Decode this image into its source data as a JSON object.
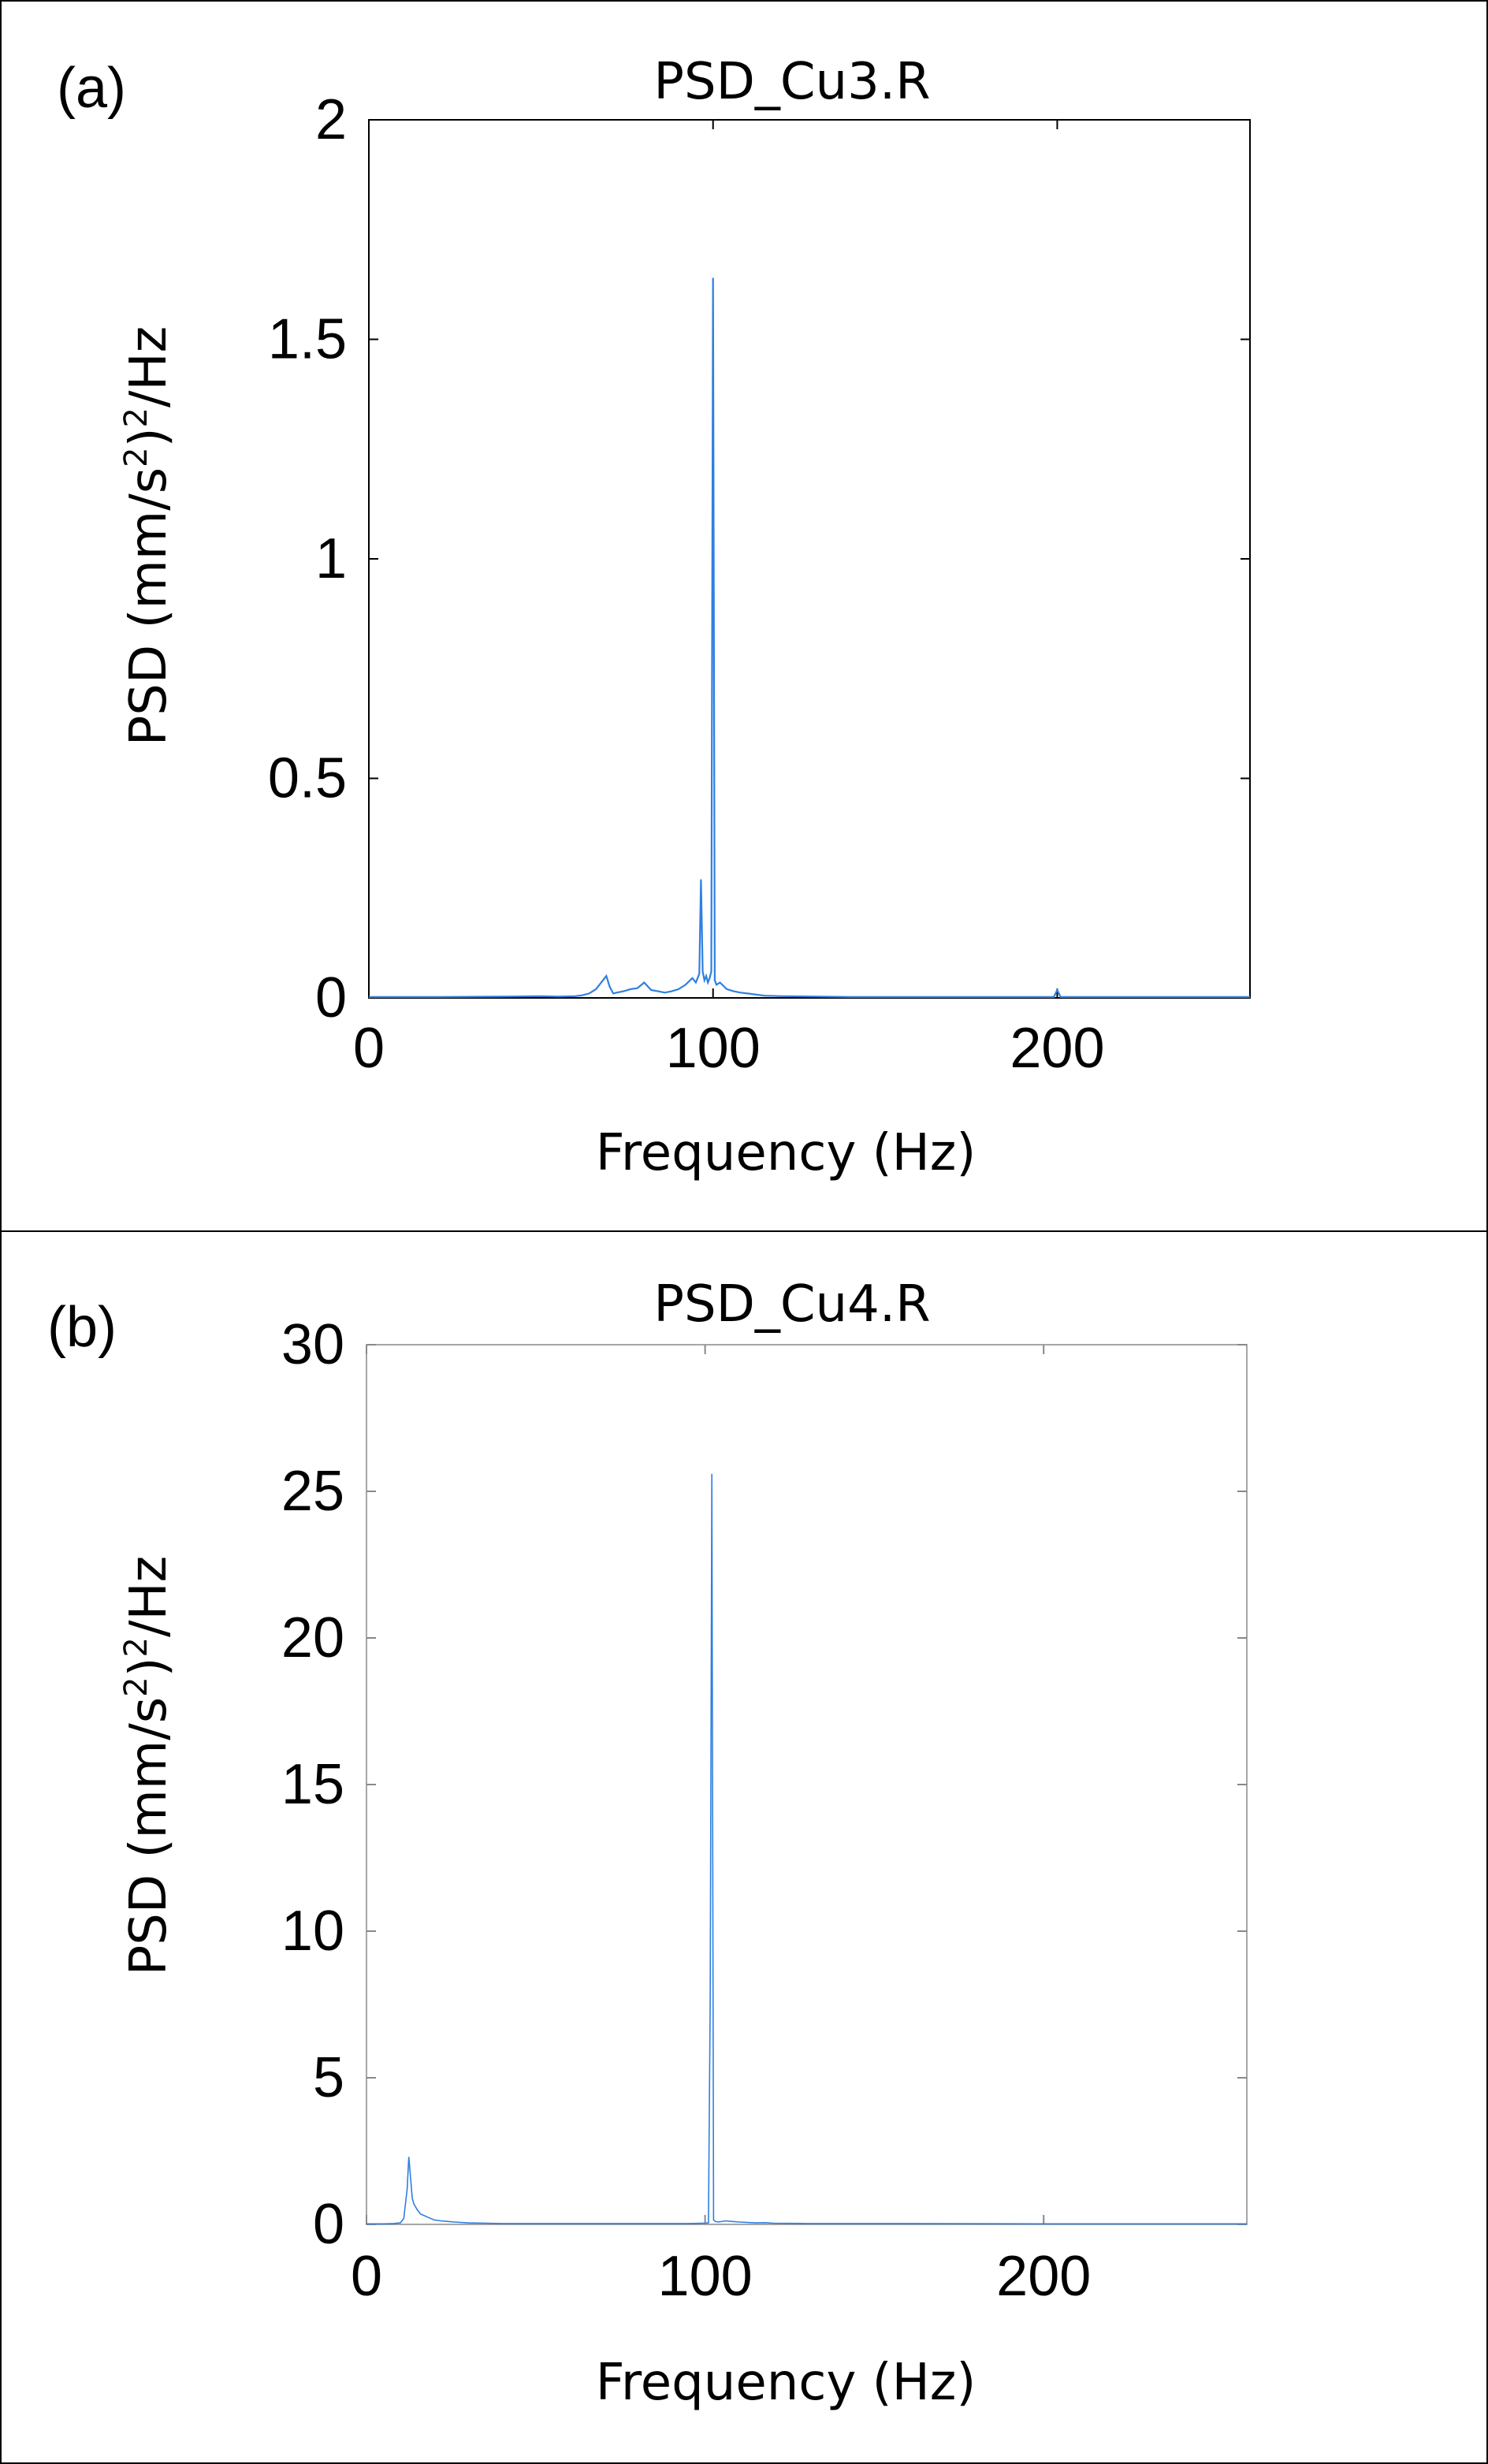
{
  "chart_data": [
    {
      "type": "line",
      "panel_label": "(a)",
      "title": "PSD_Cu3.R",
      "xlabel": "Frequency (Hz)",
      "ylabel_prefix": "PSD (mm/s",
      "ylabel_sup": "2",
      "ylabel_mid": ")",
      "ylabel_sup2": "2",
      "ylabel_suffix": "/Hz",
      "xlim": [
        0,
        256
      ],
      "ylim": [
        0,
        2
      ],
      "xticks": [
        0,
        100,
        200
      ],
      "yticks": [
        0,
        0.5,
        1,
        1.5,
        2
      ],
      "grid": false,
      "line_color": "#2f7fe0",
      "series": [
        {
          "x": [
            0,
            20,
            40,
            50,
            55,
            60,
            62,
            64,
            66,
            68,
            69,
            70,
            71,
            72,
            74,
            76,
            78,
            80,
            82,
            84,
            86,
            88,
            90,
            92,
            94,
            95,
            96,
            96.5,
            97,
            97.5,
            98,
            98.5,
            99,
            99.5,
            100,
            100.5,
            101,
            102,
            104,
            106,
            108,
            110,
            115,
            120,
            130,
            140,
            160,
            180,
            199,
            200,
            201,
            220,
            240,
            256
          ],
          "y": [
            0.002,
            0.002,
            0.003,
            0.004,
            0.003,
            0.004,
            0.006,
            0.01,
            0.02,
            0.04,
            0.05,
            0.025,
            0.01,
            0.012,
            0.015,
            0.02,
            0.022,
            0.035,
            0.018,
            0.015,
            0.012,
            0.015,
            0.02,
            0.03,
            0.045,
            0.035,
            0.055,
            0.27,
            0.06,
            0.04,
            0.05,
            0.035,
            0.045,
            0.06,
            1.64,
            0.04,
            0.03,
            0.035,
            0.02,
            0.015,
            0.012,
            0.01,
            0.005,
            0.004,
            0.003,
            0.002,
            0.002,
            0.002,
            0.002,
            0.018,
            0.002,
            0.002,
            0.002,
            0.002
          ]
        }
      ]
    },
    {
      "type": "line",
      "panel_label": "(b)",
      "title": "PSD_Cu4.R",
      "xlabel": "Frequency (Hz)",
      "ylabel_prefix": "PSD (mm/s",
      "ylabel_sup": "2",
      "ylabel_mid": ")",
      "ylabel_sup2": "2",
      "ylabel_suffix": "/Hz",
      "xlim": [
        0,
        260
      ],
      "ylim": [
        0,
        30
      ],
      "xticks": [
        0,
        100,
        200
      ],
      "yticks": [
        0,
        5,
        10,
        15,
        20,
        25,
        30
      ],
      "grid": false,
      "line_color": "#2f7fe0",
      "series": [
        {
          "x": [
            0,
            5,
            8,
            10,
            11,
            12,
            12.5,
            13,
            13.5,
            14,
            15,
            16,
            17,
            18,
            20,
            22,
            24,
            26,
            30,
            40,
            60,
            80,
            95,
            100,
            101,
            101.5,
            102,
            102.5,
            103,
            104,
            106,
            108,
            110,
            115,
            118,
            120,
            130,
            150,
            200,
            230,
            260
          ],
          "y": [
            0.02,
            0.02,
            0.03,
            0.05,
            0.2,
            1.2,
            2.3,
            1.6,
            0.9,
            0.7,
            0.5,
            0.35,
            0.3,
            0.25,
            0.15,
            0.12,
            0.1,
            0.08,
            0.05,
            0.03,
            0.03,
            0.03,
            0.03,
            0.04,
            0.05,
            7.6,
            25.6,
            0.15,
            0.1,
            0.08,
            0.12,
            0.1,
            0.08,
            0.05,
            0.06,
            0.04,
            0.03,
            0.03,
            0.02,
            0.02,
            0.02
          ]
        }
      ]
    }
  ]
}
